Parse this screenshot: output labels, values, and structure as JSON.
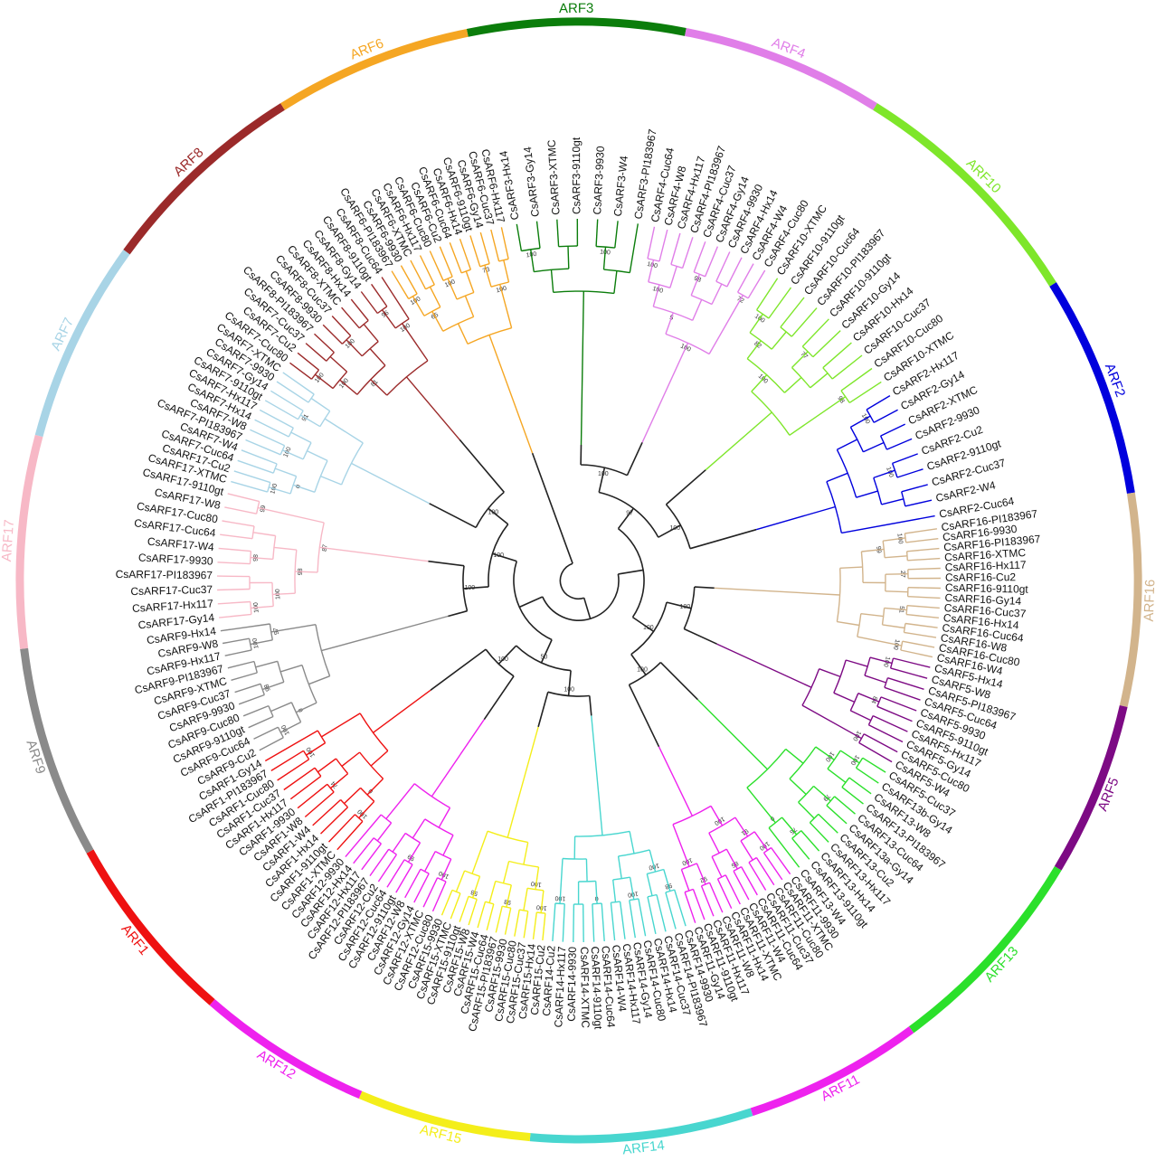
{
  "colors": {
    "backbone": "#222222",
    "leaf_text": "#111111"
  },
  "groups": [
    {
      "name": "ARF3",
      "color": "#0b7d0b",
      "leaves": [
        "CsARF3-Hx14",
        "CsARF3-Gy14",
        "CsARF3-XTMC",
        "CsARF3-9110gt",
        "CsARF3-9930",
        "CsARF3-W4",
        "CsARF3-PI183967"
      ],
      "boot": [
        "100",
        "100"
      ]
    },
    {
      "name": "ARF4",
      "color": "#e07ee8",
      "leaves": [
        "CsARF4-Cuc64",
        "CsARF4-W8",
        "CsARF4-Hx117",
        "CsARF4-PI183967",
        "CsARF4-Cuc37",
        "CsARF4-Gy14",
        "CsARF4-9930",
        "CsARF4-Hx14",
        "CsARF4-W4",
        "CsARF4-Cuc80"
      ],
      "boot": [
        "100",
        "98",
        "72",
        "100",
        "5",
        "100"
      ]
    },
    {
      "name": "ARF10",
      "color": "#7ee62a",
      "leaves": [
        "CsARF10-XTMC",
        "CsARF10-9110gt",
        "CsARF10-Cuc64",
        "CsARF10-PI183967",
        "CsARF10-9110gt",
        "CsARF10-Gy14",
        "CsARF10-Hx14",
        "CsARF10-Cuc37",
        "CsARF10-Cuc80",
        "CsARF10-XTMC"
      ],
      "boot": [
        "100",
        "77",
        "98",
        "82",
        "100"
      ]
    },
    {
      "name": "ARF2",
      "color": "#0000dd",
      "leaves": [
        "CsARF2-Hx117",
        "CsARF2-Gy14",
        "CsARF2-XTMC",
        "CsARF2-9930",
        "CsARF2-Cu2",
        "CsARF2-9110gt",
        "CsARF2-Cuc37",
        "CsARF2-W4",
        "CsARF2-Cuc64"
      ],
      "boot": [
        "100",
        "100"
      ]
    },
    {
      "name": "ARF16",
      "color": "#d2b48c",
      "leaves": [
        "CsARF16-PI183967",
        "CsARF16-9930",
        "CsARF16-PI183967",
        "CsARF16-XTMC",
        "CsARF16-Hx117",
        "CsARF16-Cu2",
        "CsARF16-9110gt",
        "CsARF16-Gy14",
        "CsARF16-Cuc37",
        "CsARF16-Hx14",
        "CsARF16-Cuc64",
        "CsARF16-W8",
        "CsARF16-Cuc80",
        "CsARF16-W4"
      ],
      "boot": [
        "100",
        "27",
        "51",
        "100",
        "99"
      ]
    },
    {
      "name": "ARF5",
      "color": "#7d0a84",
      "leaves": [
        "CsARF5-Hx14",
        "CsARF5-W8",
        "CsARF5-PI183967",
        "CsARF5-Cuc64",
        "CsARF5-9930",
        "CsARF5-9110gt",
        "CsARF5-Hx117",
        "CsARF5-Gy14",
        "CsARF5-Cuc80",
        "CsARF5-W4"
      ],
      "boot": [
        "100",
        "84",
        "100"
      ]
    },
    {
      "name": "ARF13",
      "color": "#2be02b",
      "leaves": [
        "CsARF5-Cuc37",
        "CsARF13b-Gy14",
        "CsARF13-W8",
        "CsARF13-PI183967",
        "CsARF13-Cuc64",
        "CsARF13a-Gy14",
        "CsARF13-Cu2",
        "CsARF13-Hx117",
        "CsARF13-Hx14",
        "CsARF13-9110gt",
        "CsARF13-W4"
      ],
      "boot": [
        "100",
        "79",
        "76",
        "100",
        "0"
      ]
    },
    {
      "name": "ARF11",
      "color": "#ee22ee",
      "leaves": [
        "CsARF11-9930",
        "CsARF11-XTMC",
        "CsARF11-Cuc80",
        "CsARF11-Cuc37",
        "CsARF11-Cuc64",
        "CsARF11-W4",
        "CsARF11-XTMC",
        "CsARF11-Hx14",
        "CsARF11-W8",
        "CsARF11-Hx117",
        "CsARF11-9110gt",
        "CsARF11-Gy14"
      ],
      "boot": [
        "100",
        "86",
        "92",
        "91",
        "100",
        "100"
      ]
    },
    {
      "name": "ARF14",
      "color": "#48d6cf",
      "leaves": [
        "CsARF14-9930",
        "CsARF14-PI183967",
        "CsARF14-Cuc37",
        "CsARF14-Hx14",
        "CsARF14-Cuc80",
        "CsARF14-Gy14",
        "CsARF14-Hx117",
        "CsARF14-W4",
        "CsARF14-Cuc64",
        "CsARF14-9110gt",
        "CsARF14-XTMC",
        "CsARF14-9930",
        "CsARF14-Hx117",
        "CsARF14-Cu2"
      ],
      "boot": [
        "98",
        "100",
        "0",
        "100",
        "100"
      ]
    },
    {
      "name": "ARF15",
      "color": "#f4ee1a",
      "leaves": [
        "CsARF15-Cu2",
        "CsARF15-Hx14",
        "CsARF15-Cuc37",
        "CsARF15-Cuc80",
        "CsARF15-9930",
        "CsARF15-PI183967",
        "CsARF15-Cuc64",
        "CsARF15-W4",
        "CsARF15-W8",
        "CsARF15-9110gt",
        "CsARF15-XTMC",
        "CsARF15-9930"
      ],
      "boot": [
        "100",
        "98",
        "58",
        "100"
      ]
    },
    {
      "name": "ARF12",
      "color": "#ee22ee",
      "leaves": [
        "CsARF12-Cuc80",
        "CsARF12-XTMC",
        "CsARF12-Gy14",
        "CsARF12-W8",
        "CsARF12-9110gt",
        "CsARF12-Cuc64",
        "CsARF12-Cu2",
        "CsARF12-PI183967",
        "CsARF12-Hx117",
        "CsARF12-Hx14",
        "CsARF12-9930"
      ],
      "boot": [
        "100",
        "99"
      ]
    },
    {
      "name": "ARF1",
      "color": "#ee1111",
      "leaves": [
        "CsARF1-XTMC",
        "CsARF1-9110gt",
        "CsARF1-Hx14",
        "CsARF1-W4",
        "CsARF1-W8",
        "CsARF1-9930",
        "CsARF1-Hx117",
        "CsARF1-Cuc37",
        "CsARF1-Cuc80",
        "CsARF1-PI183967",
        "CsARF1-Gy14"
      ],
      "boot": [
        "100",
        "74",
        "100",
        "0"
      ]
    },
    {
      "name": "ARF9",
      "color": "#8a8a8a",
      "leaves": [
        "CsARF9-Cu2",
        "CsARF9-Cuc64",
        "CsARF9-9110gt",
        "CsARF9-Cuc80",
        "CsARF9-9930",
        "CsARF9-Cuc37",
        "CsARF9-XTMC",
        "CsARF9-PI183967",
        "CsARF9-Hx117",
        "CsARF9-W8",
        "CsARF9-Hx14"
      ],
      "boot": [
        "100",
        "98",
        "100",
        "0",
        "97"
      ]
    },
    {
      "name": "ARF17",
      "color": "#f7b8c6",
      "leaves": [
        "CsARF17-Gy14",
        "CsARF17-Hx117",
        "CsARF17-Cuc37",
        "CsARF17-PI183967",
        "CsARF17-9930",
        "CsARF17-W4",
        "CsARF17-Cuc64",
        "CsARF17-Cuc80",
        "CsARF17-W8",
        "CsARF17-9110gt"
      ],
      "boot": [
        "100",
        "98",
        "99",
        "100",
        "98",
        "87"
      ]
    },
    {
      "name": "ARF7",
      "color": "#a8d4e6",
      "leaves": [
        "CsARF17-XTMC",
        "CsARF17-Cu2",
        "CsARF7-Cuc64",
        "CsARF7-W4",
        "CsARF7-PI183967",
        "CsARF7-W8",
        "CsARF7-Hx14",
        "CsARF7-Hx117",
        "CsARF7-9110gt",
        "CsARF7-Gy14",
        "CsARF7-9930",
        "CsARF7-XTMC"
      ],
      "boot": [
        "100",
        "100",
        "91",
        "0"
      ]
    },
    {
      "name": "ARF8",
      "color": "#9b2a2a",
      "leaves": [
        "CsARF7-Cuc80",
        "CsARF7-Cu2",
        "CsARF7-Cuc37",
        "CsARF8-PI183967",
        "CsARF8-9930",
        "CsARF8-Cuc37",
        "CsARF8-XTMC",
        "CsARF8-Hx14",
        "CsARF8-Gy14",
        "CsARF8-9110gt",
        "CsARF8-Cuc64"
      ],
      "boot": [
        "100",
        "100",
        "96",
        "100",
        "100",
        "81"
      ]
    },
    {
      "name": "ARF6",
      "color": "#f5a623",
      "leaves": [
        "CsARF6-PI183967",
        "CsARF6-9930",
        "CsARF6-XTMC",
        "CsARF6-Hx117",
        "CsARF6-Cuc80",
        "CsARF6-Cu2",
        "CsARF6-Cuc64",
        "CsARF6-Hx14",
        "CsARF6-9110gt",
        "CsARF6-Gy14",
        "CsARF6-Cuc37",
        "CsARF6-Hx117"
      ],
      "boot": [
        "100",
        "100",
        "73",
        "65",
        "100"
      ]
    }
  ],
  "backbone_boot": [
    "100",
    "100",
    "100",
    "100",
    "100",
    "100",
    "100",
    "100",
    "97",
    "100",
    "50",
    "100"
  ]
}
